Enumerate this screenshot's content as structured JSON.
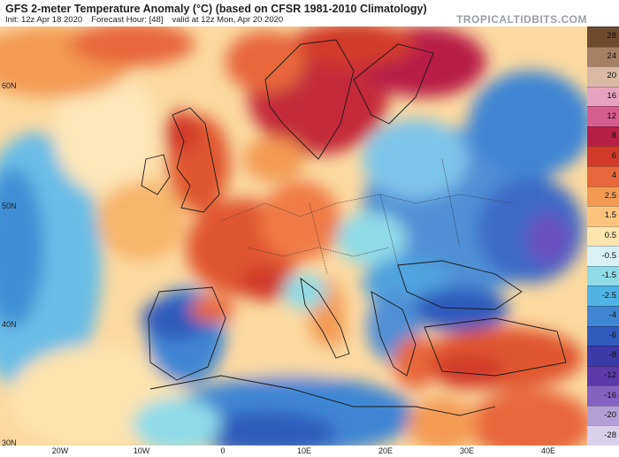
{
  "header": {
    "title": "GFS 2-meter Temperature Anomaly (°C) (based on CFSR 1981-2010 Climatology)",
    "init": "Init: 12z Apr 18 2020",
    "forecast_hour": "Forecast Hour: [48]",
    "valid": "valid at 12z Mon, Apr 20 2020",
    "brand": "TROPICALTIDBITS.COM"
  },
  "map": {
    "lat_labels": [
      "60N",
      "50N",
      "40N",
      "30N"
    ],
    "lon_labels": [
      "20W",
      "10W",
      "0",
      "10E",
      "20E",
      "30E",
      "40E"
    ]
  },
  "colorbar": {
    "labels": [
      "28",
      "24",
      "20",
      "16",
      "12",
      "8",
      "6",
      "4",
      "2.5",
      "1.5",
      "0.5",
      "-0.5",
      "-1.5",
      "-2.5",
      "-4",
      "-6",
      "-8",
      "-12",
      "-16",
      "-20",
      "-28"
    ],
    "colors": [
      "#6e4a2e",
      "#a58065",
      "#d9b9a4",
      "#e6a3c0",
      "#d85d8f",
      "#b81f47",
      "#d23a2c",
      "#e8673a",
      "#f39a52",
      "#fbc37c",
      "#fde3ad",
      "#d8f1f5",
      "#8fdbe8",
      "#4fb3e3",
      "#3f86d4",
      "#2f5bbd",
      "#3a3aa8",
      "#5a3aa8",
      "#8462c2",
      "#b39fd6",
      "#d9d0ec"
    ]
  }
}
